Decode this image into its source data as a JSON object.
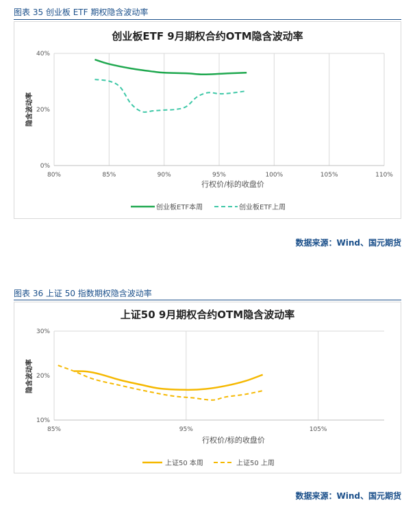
{
  "captions": {
    "top": "图表 35  创业板 ETF 期权隐含波动率",
    "bottom": "图表 36  上证 50 指数期权隐含波动率"
  },
  "sources": {
    "top": "数据来源：Wind、国元期货",
    "bottom": "数据来源：Wind、国元期货"
  },
  "colors": {
    "caption": "#1a4f8a",
    "green": "#1fa84f",
    "teal": "#3cc7a6",
    "gold": "#f5b800",
    "grid": "#d9d9d9"
  },
  "chart_data": [
    {
      "type": "line",
      "title": "创业板ETF 9月期权合约OTM隐含波动率",
      "xlabel": "行权价/标的收盘价",
      "ylabel": "隐含波动率",
      "xlim": [
        80,
        110
      ],
      "ylim": [
        0,
        40
      ],
      "x_ticks": [
        "80%",
        "85%",
        "90%",
        "95%",
        "100%",
        "105%",
        "110%"
      ],
      "x_tick_values": [
        80,
        85,
        90,
        95,
        100,
        105,
        110
      ],
      "y_ticks": [
        "0%",
        "20%",
        "40%"
      ],
      "y_tick_values": [
        0,
        20,
        40
      ],
      "grid": "vertical",
      "legend": "bottom",
      "series": [
        {
          "name": "创业板ETF本周",
          "style": "solid",
          "color": "#1fa84f",
          "x": [
            83.7,
            85,
            87,
            89,
            90,
            92,
            93.5,
            95,
            96,
            97.5
          ],
          "y": [
            37.8,
            36.2,
            34.6,
            33.5,
            33.1,
            32.9,
            32.5,
            32.7,
            32.9,
            33.1
          ]
        },
        {
          "name": "创业板ETF上周",
          "style": "dashed",
          "color": "#3cc7a6",
          "x": [
            83.7,
            85,
            86,
            87,
            88,
            89,
            90,
            91,
            92,
            93,
            94,
            95,
            96,
            97.5
          ],
          "y": [
            30.7,
            30.1,
            28.0,
            22.0,
            19.2,
            19.5,
            19.8,
            20.0,
            21.0,
            24.5,
            26.0,
            25.6,
            25.8,
            26.6
          ]
        }
      ]
    },
    {
      "type": "line",
      "title": "上证50 9月期权合约OTM隐含波动率",
      "xlabel": "行权价/标的收盘价",
      "ylabel": "隐含波动率",
      "xlim": [
        85,
        110
      ],
      "ylim": [
        10,
        30
      ],
      "x_ticks": [
        "85%",
        "95%",
        "105%"
      ],
      "x_tick_values": [
        85,
        95,
        105
      ],
      "y_ticks": [
        "10%",
        "20%",
        "30%"
      ],
      "y_tick_values": [
        10,
        20,
        30
      ],
      "grid": "vertical",
      "legend": "bottom",
      "series": [
        {
          "name": "上证50 本周",
          "style": "solid",
          "color": "#f5b800",
          "x": [
            86.5,
            87.5,
            88.5,
            90,
            91.5,
            93,
            95,
            96.5,
            98,
            99.5,
            100.8
          ],
          "y": [
            21.0,
            20.9,
            20.3,
            19.0,
            18.0,
            17.1,
            16.8,
            17.0,
            17.7,
            18.8,
            20.2
          ]
        },
        {
          "name": "上证50 上周",
          "style": "dashed",
          "color": "#f5b800",
          "x": [
            85.3,
            86.5,
            88,
            90,
            92,
            94,
            95.5,
            97,
            98,
            99.5,
            100.8
          ],
          "y": [
            22.3,
            21.0,
            19.2,
            17.8,
            16.5,
            15.4,
            15.0,
            14.5,
            15.2,
            15.8,
            16.6
          ]
        }
      ]
    }
  ]
}
